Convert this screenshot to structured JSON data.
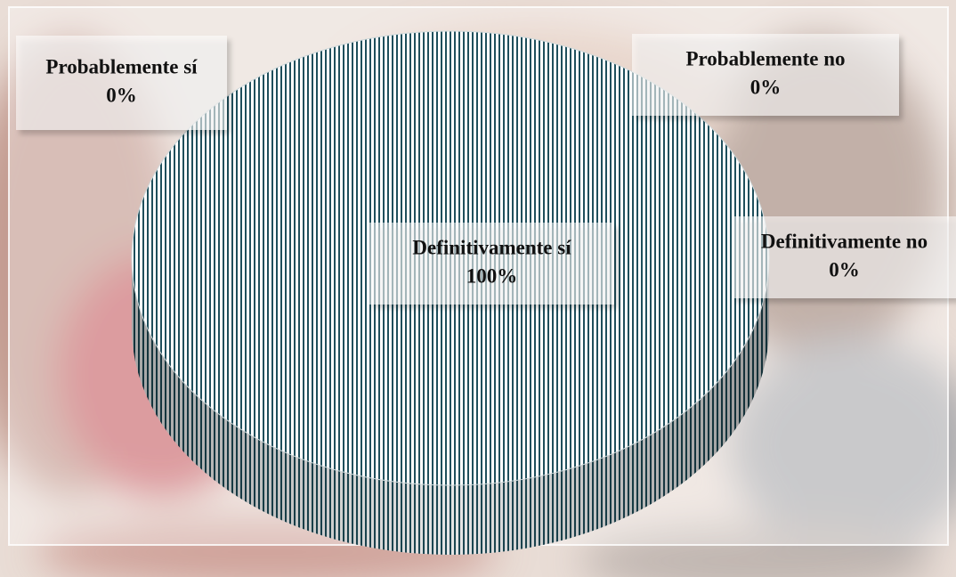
{
  "chart_data": {
    "type": "pie",
    "categories": [
      "Definitivamente sí",
      "Probablemente sí",
      "Probablemente no",
      "Definitivamente no"
    ],
    "values": [
      100,
      0,
      0,
      0
    ],
    "value_labels": [
      "100%",
      "0%",
      "0%",
      "0%"
    ],
    "color": "#1f4f5c"
  }
}
